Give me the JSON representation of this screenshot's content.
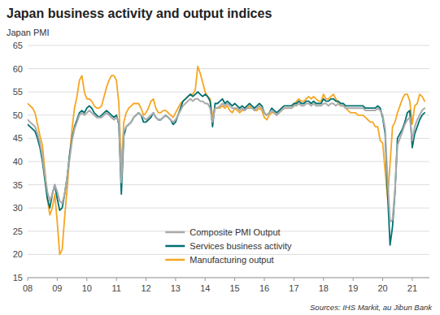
{
  "chart_data": {
    "type": "line",
    "title": "Japan business activity and output indices",
    "ylabel": "Japan PMI",
    "annotations": [
      "Sources: IHS Markit, au Jibun Bank"
    ],
    "xlim": [
      2008.0,
      2021.58
    ],
    "xticks": [
      {
        "value": 2008,
        "label": "08"
      },
      {
        "value": 2009,
        "label": "09"
      },
      {
        "value": 2010,
        "label": "10"
      },
      {
        "value": 2011,
        "label": "11"
      },
      {
        "value": 2012,
        "label": "12"
      },
      {
        "value": 2013,
        "label": "13"
      },
      {
        "value": 2014,
        "label": "14"
      },
      {
        "value": 2015,
        "label": "15"
      },
      {
        "value": 2016,
        "label": "16"
      },
      {
        "value": 2017,
        "label": "17"
      },
      {
        "value": 2018,
        "label": "18"
      },
      {
        "value": 2019,
        "label": "19"
      },
      {
        "value": 2020,
        "label": "20"
      },
      {
        "value": 2021,
        "label": "21"
      }
    ],
    "ylim": [
      15,
      65
    ],
    "yticks": [
      15,
      20,
      25,
      30,
      35,
      40,
      45,
      50,
      55,
      60,
      65
    ],
    "grid": true,
    "legend": "lower center",
    "x": [
      2008.0,
      2008.083,
      2008.167,
      2008.25,
      2008.333,
      2008.417,
      2008.5,
      2008.583,
      2008.667,
      2008.75,
      2008.833,
      2008.917,
      2009.0,
      2009.083,
      2009.167,
      2009.25,
      2009.333,
      2009.417,
      2009.5,
      2009.583,
      2009.667,
      2009.75,
      2009.833,
      2009.917,
      2010.0,
      2010.083,
      2010.167,
      2010.25,
      2010.333,
      2010.417,
      2010.5,
      2010.583,
      2010.667,
      2010.75,
      2010.833,
      2010.917,
      2011.0,
      2011.083,
      2011.167,
      2011.25,
      2011.333,
      2011.417,
      2011.5,
      2011.583,
      2011.667,
      2011.75,
      2011.833,
      2011.917,
      2012.0,
      2012.083,
      2012.167,
      2012.25,
      2012.333,
      2012.417,
      2012.5,
      2012.583,
      2012.667,
      2012.75,
      2012.833,
      2012.917,
      2013.0,
      2013.083,
      2013.167,
      2013.25,
      2013.333,
      2013.417,
      2013.5,
      2013.583,
      2013.667,
      2013.75,
      2013.833,
      2013.917,
      2014.0,
      2014.083,
      2014.167,
      2014.25,
      2014.333,
      2014.417,
      2014.5,
      2014.583,
      2014.667,
      2014.75,
      2014.833,
      2014.917,
      2015.0,
      2015.083,
      2015.167,
      2015.25,
      2015.333,
      2015.417,
      2015.5,
      2015.583,
      2015.667,
      2015.75,
      2015.833,
      2015.917,
      2016.0,
      2016.083,
      2016.167,
      2016.25,
      2016.333,
      2016.417,
      2016.5,
      2016.583,
      2016.667,
      2016.75,
      2016.833,
      2016.917,
      2017.0,
      2017.083,
      2017.167,
      2017.25,
      2017.333,
      2017.417,
      2017.5,
      2017.583,
      2017.667,
      2017.75,
      2017.833,
      2017.917,
      2018.0,
      2018.083,
      2018.167,
      2018.25,
      2018.333,
      2018.417,
      2018.5,
      2018.583,
      2018.667,
      2018.75,
      2018.833,
      2018.917,
      2019.0,
      2019.083,
      2019.167,
      2019.25,
      2019.333,
      2019.417,
      2019.5,
      2019.583,
      2019.667,
      2019.75,
      2019.833,
      2019.917,
      2020.0,
      2020.083,
      2020.167,
      2020.25,
      2020.333,
      2020.417,
      2020.5,
      2020.583,
      2020.667,
      2020.75,
      2020.833,
      2020.917,
      2021.0,
      2021.083,
      2021.167,
      2021.25,
      2021.333,
      2021.417
    ],
    "series": [
      {
        "name": "Composite PMI Output",
        "color": "#aaaaaa",
        "values": [
          49.0,
          48.5,
          48.0,
          47.5,
          46.0,
          44.0,
          41.0,
          37.0,
          33.5,
          31.5,
          33.0,
          35.0,
          33.5,
          31.5,
          31.0,
          33.0,
          36.5,
          40.5,
          44.5,
          47.0,
          48.5,
          50.0,
          50.5,
          50.0,
          50.5,
          51.0,
          50.5,
          50.0,
          49.5,
          49.5,
          49.5,
          50.0,
          50.5,
          50.0,
          49.5,
          49.0,
          49.5,
          48.5,
          35.5,
          46.5,
          47.5,
          48.0,
          48.5,
          49.5,
          50.0,
          50.5,
          50.0,
          49.5,
          49.0,
          49.5,
          50.0,
          50.5,
          49.5,
          49.0,
          49.0,
          49.5,
          50.0,
          49.5,
          49.0,
          48.5,
          49.0,
          50.0,
          51.0,
          52.0,
          52.5,
          53.0,
          53.5,
          53.0,
          53.5,
          53.5,
          53.0,
          53.0,
          52.5,
          52.5,
          51.5,
          48.5,
          51.5,
          51.5,
          52.0,
          52.5,
          52.0,
          52.5,
          52.0,
          51.5,
          51.5,
          51.5,
          51.0,
          51.5,
          51.0,
          51.5,
          51.5,
          51.5,
          51.0,
          51.5,
          52.0,
          51.5,
          50.5,
          50.0,
          50.5,
          51.0,
          50.5,
          50.0,
          50.5,
          51.0,
          51.5,
          51.5,
          51.5,
          51.5,
          52.0,
          52.0,
          52.5,
          52.0,
          52.0,
          52.5,
          52.5,
          52.0,
          52.5,
          52.0,
          52.0,
          52.0,
          52.5,
          52.5,
          52.0,
          52.5,
          52.5,
          52.0,
          52.5,
          52.0,
          52.0,
          51.5,
          51.5,
          51.5,
          51.5,
          51.5,
          51.5,
          51.5,
          51.5,
          51.0,
          51.0,
          51.0,
          51.0,
          51.0,
          51.5,
          51.0,
          50.0,
          47.0,
          36.0,
          27.0,
          27.5,
          34.0,
          43.5,
          45.0,
          46.5,
          48.0,
          49.0,
          49.5,
          44.5,
          47.5,
          49.0,
          50.0,
          51.0,
          51.5
        ]
      },
      {
        "name": "Services business activity",
        "color": "#007070",
        "values": [
          48.0,
          47.5,
          47.0,
          46.5,
          45.0,
          43.0,
          40.0,
          36.0,
          32.0,
          30.0,
          33.0,
          35.0,
          32.0,
          29.5,
          30.0,
          33.0,
          36.5,
          41.5,
          45.0,
          47.5,
          49.0,
          50.5,
          51.0,
          50.5,
          51.5,
          52.0,
          51.5,
          50.5,
          50.0,
          49.5,
          50.0,
          50.5,
          51.0,
          50.5,
          50.0,
          49.5,
          50.0,
          48.0,
          33.0,
          45.5,
          47.5,
          48.0,
          48.5,
          49.5,
          50.0,
          50.5,
          50.0,
          48.5,
          48.5,
          49.0,
          49.5,
          50.5,
          49.5,
          49.0,
          49.0,
          49.5,
          50.0,
          49.5,
          49.0,
          48.0,
          48.5,
          50.0,
          51.5,
          53.0,
          53.5,
          54.0,
          54.5,
          54.0,
          54.5,
          55.0,
          54.5,
          54.0,
          54.5,
          54.0,
          53.0,
          47.5,
          52.5,
          52.5,
          53.0,
          53.5,
          52.5,
          53.0,
          52.5,
          52.0,
          52.5,
          52.0,
          51.5,
          52.0,
          51.5,
          52.0,
          52.5,
          52.0,
          51.5,
          52.0,
          52.5,
          52.0,
          50.5,
          50.0,
          50.5,
          51.5,
          51.0,
          50.5,
          51.0,
          51.5,
          52.0,
          52.0,
          52.0,
          52.0,
          52.5,
          52.5,
          53.0,
          52.5,
          52.5,
          53.0,
          53.0,
          52.5,
          53.0,
          52.5,
          52.5,
          52.5,
          53.5,
          53.0,
          53.0,
          53.5,
          53.5,
          53.0,
          53.0,
          52.5,
          52.5,
          52.0,
          52.0,
          52.0,
          52.0,
          52.0,
          52.0,
          52.0,
          52.0,
          51.5,
          51.5,
          51.5,
          51.5,
          51.5,
          52.0,
          51.5,
          49.5,
          46.0,
          33.0,
          22.0,
          26.0,
          33.5,
          45.0,
          46.0,
          47.0,
          48.5,
          50.5,
          51.0,
          43.0,
          46.0,
          47.5,
          49.0,
          50.0,
          50.5
        ]
      },
      {
        "name": "Manufacturing output",
        "color": "#f5a623",
        "values": [
          52.5,
          52.0,
          51.5,
          50.5,
          48.0,
          45.5,
          43.5,
          38.0,
          32.0,
          28.5,
          30.0,
          33.0,
          27.0,
          20.0,
          21.0,
          28.0,
          34.0,
          41.0,
          47.0,
          51.5,
          54.0,
          57.5,
          58.5,
          55.0,
          53.5,
          53.5,
          53.0,
          52.0,
          51.5,
          51.5,
          52.0,
          54.0,
          56.0,
          57.5,
          58.5,
          58.5,
          57.5,
          52.5,
          38.5,
          48.5,
          50.5,
          51.5,
          52.0,
          52.5,
          52.5,
          52.5,
          51.5,
          50.0,
          50.5,
          51.5,
          53.0,
          53.5,
          51.5,
          50.5,
          50.5,
          51.0,
          51.0,
          50.5,
          50.0,
          49.5,
          50.5,
          51.5,
          52.5,
          53.0,
          53.5,
          54.0,
          54.5,
          54.5,
          55.5,
          60.5,
          59.0,
          57.0,
          55.0,
          54.0,
          53.5,
          49.5,
          51.5,
          51.5,
          51.5,
          52.0,
          51.5,
          52.0,
          51.0,
          50.5,
          51.5,
          51.0,
          50.5,
          51.0,
          51.0,
          51.5,
          52.0,
          51.5,
          51.0,
          51.0,
          51.5,
          51.0,
          49.5,
          49.0,
          50.0,
          50.5,
          50.5,
          50.0,
          50.5,
          51.0,
          51.5,
          51.5,
          51.5,
          51.5,
          52.0,
          53.0,
          53.5,
          53.0,
          53.0,
          53.5,
          54.0,
          53.5,
          54.0,
          53.5,
          53.0,
          53.0,
          54.5,
          53.5,
          53.5,
          54.0,
          54.5,
          53.5,
          52.5,
          52.0,
          52.0,
          51.5,
          51.0,
          50.5,
          50.5,
          50.5,
          50.0,
          50.0,
          50.0,
          49.5,
          49.0,
          48.5,
          48.5,
          47.5,
          47.5,
          44.5,
          44.0,
          38.0,
          32.0,
          39.5,
          47.5,
          48.5,
          50.5,
          52.0,
          53.5,
          54.5,
          54.5,
          53.0,
          48.0,
          52.0,
          52.5,
          54.5,
          54.0,
          53.0
        ]
      }
    ]
  }
}
